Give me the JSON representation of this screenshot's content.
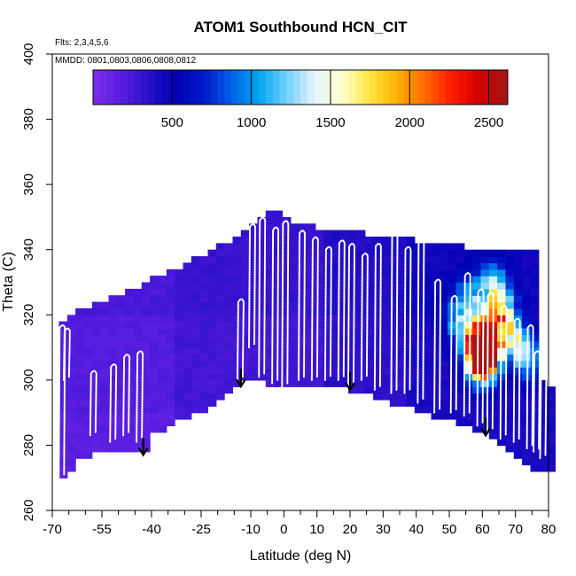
{
  "chart_data": {
    "type": "heatmap",
    "title": "ATOM1 Southbound HCN_CIT",
    "notes": [
      "Flts: 2,3,4,5,6",
      "MMDD: 0801,0803,0806,0808,0812"
    ],
    "xlabel": "Latitude (deg N)",
    "ylabel": "Theta (C)",
    "xlim": [
      -70,
      80
    ],
    "ylim": [
      260,
      400
    ],
    "x_ticks_major": [
      -70,
      -55,
      -40,
      -25,
      -10,
      0,
      10,
      20,
      30,
      40,
      50,
      60,
      70,
      80
    ],
    "x_ticks_minor": [
      -65,
      -60,
      -50,
      -45,
      -35,
      -30,
      -20,
      -15,
      -5,
      5,
      15,
      25,
      35,
      45,
      55,
      65,
      75
    ],
    "y_ticks": [
      260,
      280,
      300,
      320,
      340,
      360,
      380,
      400
    ],
    "colorbar": {
      "ticks": [
        500,
        1000,
        1500,
        2000,
        2500
      ],
      "range": [
        0,
        2620
      ],
      "colors": [
        "#7a2fe8",
        "#5a1ee0",
        "#2a10c8",
        "#0000b4",
        "#0018c8",
        "#0060e8",
        "#00a4f0",
        "#70d0ff",
        "#e6f4ff",
        "#ffffd0",
        "#ffe640",
        "#ffb000",
        "#ff6a00",
        "#ff1a00",
        "#d00000",
        "#a01818"
      ]
    },
    "lower_boundary": [
      [
        -68,
        265
      ],
      [
        -67,
        270
      ],
      [
        -62,
        275
      ],
      [
        -57,
        277
      ],
      [
        -52,
        278
      ],
      [
        -47,
        279
      ],
      [
        -42.5,
        277
      ],
      [
        -40,
        283
      ],
      [
        -33,
        287
      ],
      [
        -22,
        291
      ],
      [
        -13,
        299
      ],
      [
        -8,
        300
      ],
      [
        -2,
        298
      ],
      [
        5,
        298
      ],
      [
        15,
        298
      ],
      [
        25,
        296
      ],
      [
        35,
        292
      ],
      [
        45,
        289
      ],
      [
        55,
        286
      ],
      [
        61,
        283
      ],
      [
        66,
        280
      ],
      [
        72,
        276
      ],
      [
        77,
        272
      ],
      [
        80,
        272
      ]
    ],
    "upper_boundary": [
      [
        -68,
        317
      ],
      [
        -66,
        320
      ],
      [
        -60,
        322
      ],
      [
        -55,
        324
      ],
      [
        -50,
        326
      ],
      [
        -45,
        328
      ],
      [
        -40,
        331
      ],
      [
        -33,
        334
      ],
      [
        -28,
        337
      ],
      [
        -22,
        340
      ],
      [
        -16,
        343
      ],
      [
        -12,
        345
      ],
      [
        -8,
        350
      ],
      [
        -2,
        352
      ],
      [
        3,
        349
      ],
      [
        10,
        347
      ],
      [
        20,
        346
      ],
      [
        30,
        344
      ],
      [
        40,
        343
      ],
      [
        50,
        342
      ],
      [
        60,
        340
      ],
      [
        70,
        339
      ],
      [
        78,
        339
      ],
      [
        78,
        300
      ],
      [
        80,
        297
      ],
      [
        80,
        272
      ]
    ],
    "hotspots": [
      {
        "lat": 58,
        "theta": 312,
        "value": 1700
      },
      {
        "lat": 61,
        "theta": 310,
        "value": 2600
      },
      {
        "lat": 60,
        "theta": 305,
        "value": 1900
      },
      {
        "lat": 64,
        "theta": 318,
        "value": 1300
      },
      {
        "lat": 66,
        "theta": 322,
        "value": 1100
      },
      {
        "lat": 56,
        "theta": 325,
        "value": 1000
      },
      {
        "lat": 63,
        "theta": 330,
        "value": 1000
      },
      {
        "lat": 70,
        "theta": 312,
        "value": 1200
      },
      {
        "lat": 74,
        "theta": 306,
        "value": 900
      },
      {
        "lat": 52,
        "theta": 318,
        "value": 800
      }
    ],
    "arrows": [
      {
        "lat": -42.5,
        "theta": 277
      },
      {
        "lat": -13,
        "theta": 298
      },
      {
        "lat": 20,
        "theta": 297
      },
      {
        "lat": 61,
        "theta": 283
      }
    ]
  }
}
